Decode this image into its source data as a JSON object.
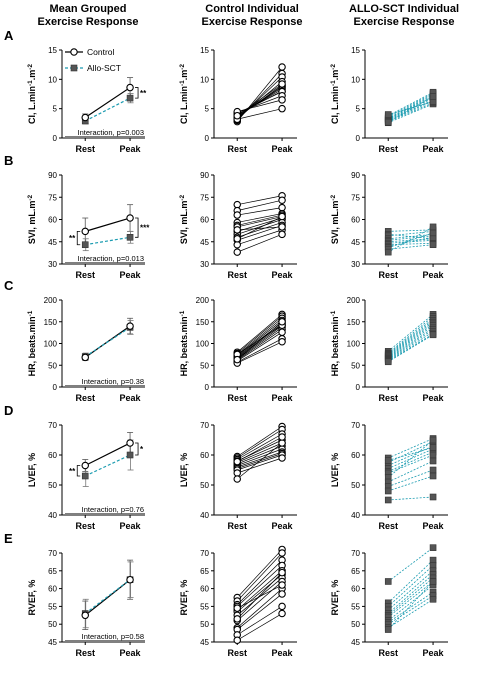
{
  "colors": {
    "control": "#000000",
    "allo": "#1a9bb0",
    "allo_marker": "#555555"
  },
  "column_titles": [
    [
      "Mean Grouped",
      "Exercise Response"
    ],
    [
      "Control Individual",
      "Exercise Response"
    ],
    [
      "ALLO-SCT Individual",
      "Exercise Response"
    ]
  ],
  "legend": {
    "control": "Control",
    "allo": "Allo-SCT"
  },
  "chart_data": [
    {
      "row": "A",
      "ylabel_parts": [
        "CI, L.min",
        "-1",
        ".m",
        "-2"
      ],
      "ylim": [
        0,
        15
      ],
      "yticks": [
        0,
        5,
        10,
        15
      ],
      "categories": [
        "Rest",
        "Peak"
      ],
      "mean": {
        "control": {
          "values": [
            3.5,
            8.6
          ],
          "err": [
            0.6,
            1.7
          ]
        },
        "allo": {
          "values": [
            2.9,
            6.8
          ],
          "err": [
            0.5,
            0.8
          ]
        },
        "sig": [
          null,
          "**"
        ],
        "interaction": "Interaction, p=0.003"
      },
      "control_individuals": [
        [
          2.8,
          12.1
        ],
        [
          3.0,
          11.0
        ],
        [
          3.1,
          10.4
        ],
        [
          3.3,
          9.6
        ],
        [
          3.5,
          9.0
        ],
        [
          3.6,
          8.8
        ],
        [
          3.7,
          8.6
        ],
        [
          3.9,
          8.3
        ],
        [
          4.0,
          8.0
        ],
        [
          4.2,
          7.9
        ],
        [
          4.3,
          7.2
        ],
        [
          4.5,
          6.5
        ],
        [
          3.2,
          5.0
        ],
        [
          3.8,
          9.2
        ]
      ],
      "allo_individuals": [
        [
          2.6,
          5.8
        ],
        [
          2.8,
          6.0
        ],
        [
          2.9,
          6.3
        ],
        [
          3.0,
          6.5
        ],
        [
          3.1,
          6.8
        ],
        [
          3.2,
          7.0
        ],
        [
          3.3,
          7.2
        ],
        [
          3.4,
          7.4
        ],
        [
          3.6,
          7.6
        ],
        [
          3.8,
          7.8
        ],
        [
          4.0,
          6.2
        ],
        [
          2.7,
          7.1
        ]
      ]
    },
    {
      "row": "B",
      "ylabel_parts": [
        "SVI, mL.m",
        "-2"
      ],
      "ylim": [
        30,
        90
      ],
      "yticks": [
        30,
        45,
        60,
        75,
        90
      ],
      "categories": [
        "Rest",
        "Peak"
      ],
      "mean": {
        "control": {
          "values": [
            52,
            61
          ],
          "err": [
            9,
            9
          ]
        },
        "allo": {
          "values": [
            43,
            48
          ],
          "err": [
            4,
            4
          ]
        },
        "sig": [
          "**",
          "***"
        ],
        "interaction": "Interaction, p=0.013"
      },
      "control_individuals": [
        [
          70,
          76
        ],
        [
          66,
          73
        ],
        [
          63,
          68
        ],
        [
          58,
          64
        ],
        [
          56,
          63
        ],
        [
          55,
          62
        ],
        [
          52,
          61
        ],
        [
          50,
          60
        ],
        [
          48,
          58
        ],
        [
          46,
          56
        ],
        [
          43,
          53
        ],
        [
          38,
          50
        ],
        [
          53,
          55
        ],
        [
          47,
          62
        ]
      ],
      "allo_individuals": [
        [
          52,
          53
        ],
        [
          50,
          47
        ],
        [
          49,
          52
        ],
        [
          47,
          50
        ],
        [
          46,
          49
        ],
        [
          45,
          47
        ],
        [
          44,
          46
        ],
        [
          43,
          44
        ],
        [
          42,
          48
        ],
        [
          41,
          51
        ],
        [
          40,
          43
        ],
        [
          38,
          55
        ]
      ]
    },
    {
      "row": "C",
      "ylabel_parts": [
        "HR, beats.min",
        "-1"
      ],
      "ylim": [
        0,
        200
      ],
      "yticks": [
        0,
        50,
        100,
        150,
        200
      ],
      "categories": [
        "Rest",
        "Peak"
      ],
      "mean": {
        "control": {
          "values": [
            68,
            140
          ],
          "err": [
            7,
            18
          ]
        },
        "allo": {
          "values": [
            70,
            137
          ],
          "err": [
            8,
            16
          ]
        },
        "sig": [
          null,
          null
        ],
        "interaction": "Interaction, p=0.38"
      },
      "control_individuals": [
        [
          80,
          167
        ],
        [
          77,
          163
        ],
        [
          74,
          158
        ],
        [
          72,
          153
        ],
        [
          70,
          148
        ],
        [
          68,
          145
        ],
        [
          66,
          141
        ],
        [
          64,
          137
        ],
        [
          62,
          132
        ],
        [
          60,
          126
        ],
        [
          57,
          111
        ],
        [
          55,
          104
        ],
        [
          75,
          142
        ],
        [
          63,
          150
        ]
      ],
      "allo_individuals": [
        [
          82,
          167
        ],
        [
          78,
          162
        ],
        [
          76,
          157
        ],
        [
          74,
          153
        ],
        [
          72,
          149
        ],
        [
          70,
          145
        ],
        [
          68,
          141
        ],
        [
          66,
          136
        ],
        [
          64,
          132
        ],
        [
          62,
          127
        ],
        [
          60,
          122
        ],
        [
          58,
          120
        ]
      ]
    },
    {
      "row": "D",
      "ylabel_parts": [
        "LVEF, %"
      ],
      "ylim": [
        40,
        70
      ],
      "yticks": [
        40,
        50,
        60,
        70
      ],
      "categories": [
        "Rest",
        "Peak"
      ],
      "mean": {
        "control": {
          "values": [
            56.5,
            64
          ],
          "err": [
            2,
            3.5
          ]
        },
        "allo": {
          "values": [
            53,
            60
          ],
          "err": [
            3.5,
            5
          ]
        },
        "sig": [
          "**",
          "*"
        ],
        "interaction": "Interaction, p=0.76"
      },
      "control_individuals": [
        [
          59.5,
          69.5
        ],
        [
          59,
          68.5
        ],
        [
          58.5,
          67
        ],
        [
          58,
          65
        ],
        [
          57.5,
          64
        ],
        [
          57,
          63
        ],
        [
          56.5,
          62
        ],
        [
          56,
          61
        ],
        [
          55.5,
          60.5
        ],
        [
          55,
          60
        ],
        [
          54,
          59
        ],
        [
          52,
          64
        ],
        [
          57.8,
          66
        ]
      ],
      "allo_individuals": [
        [
          59,
          65.5
        ],
        [
          57.5,
          64.5
        ],
        [
          56.5,
          63
        ],
        [
          55.5,
          62
        ],
        [
          54.5,
          61
        ],
        [
          54,
          60
        ],
        [
          52.5,
          65
        ],
        [
          51,
          58
        ],
        [
          49.5,
          55
        ],
        [
          48,
          53
        ],
        [
          45,
          46
        ],
        [
          58.2,
          62.5
        ]
      ]
    },
    {
      "row": "E",
      "ylabel_parts": [
        "RVEF, %"
      ],
      "ylim": [
        45,
        70
      ],
      "yticks": [
        45,
        50,
        55,
        60,
        65,
        70
      ],
      "categories": [
        "Rest",
        "Peak"
      ],
      "mean": {
        "control": {
          "values": [
            52.5,
            62.5
          ],
          "err": [
            4,
            5.5
          ]
        },
        "allo": {
          "values": [
            53,
            62.5
          ],
          "err": [
            4,
            5
          ]
        },
        "sig": [
          null,
          null
        ],
        "interaction": "Interaction, p=0.58"
      },
      "control_individuals": [
        [
          57.5,
          71
        ],
        [
          56.5,
          70
        ],
        [
          55.5,
          68
        ],
        [
          55,
          66.5
        ],
        [
          54,
          65
        ],
        [
          53.5,
          64
        ],
        [
          52.5,
          63
        ],
        [
          51,
          62
        ],
        [
          49,
          60
        ],
        [
          48.5,
          58.5
        ],
        [
          47,
          55
        ],
        [
          45.5,
          53
        ],
        [
          54.5,
          61
        ],
        [
          51.5,
          64.5
        ]
      ],
      "allo_individuals": [
        [
          62,
          71.5
        ],
        [
          56,
          68
        ],
        [
          55,
          66.5
        ],
        [
          54,
          65
        ],
        [
          53,
          64
        ],
        [
          52.5,
          63
        ],
        [
          52,
          62
        ],
        [
          51,
          61
        ],
        [
          50.5,
          59
        ],
        [
          50,
          58
        ],
        [
          49,
          57
        ],
        [
          48.5,
          62
        ]
      ]
    }
  ]
}
